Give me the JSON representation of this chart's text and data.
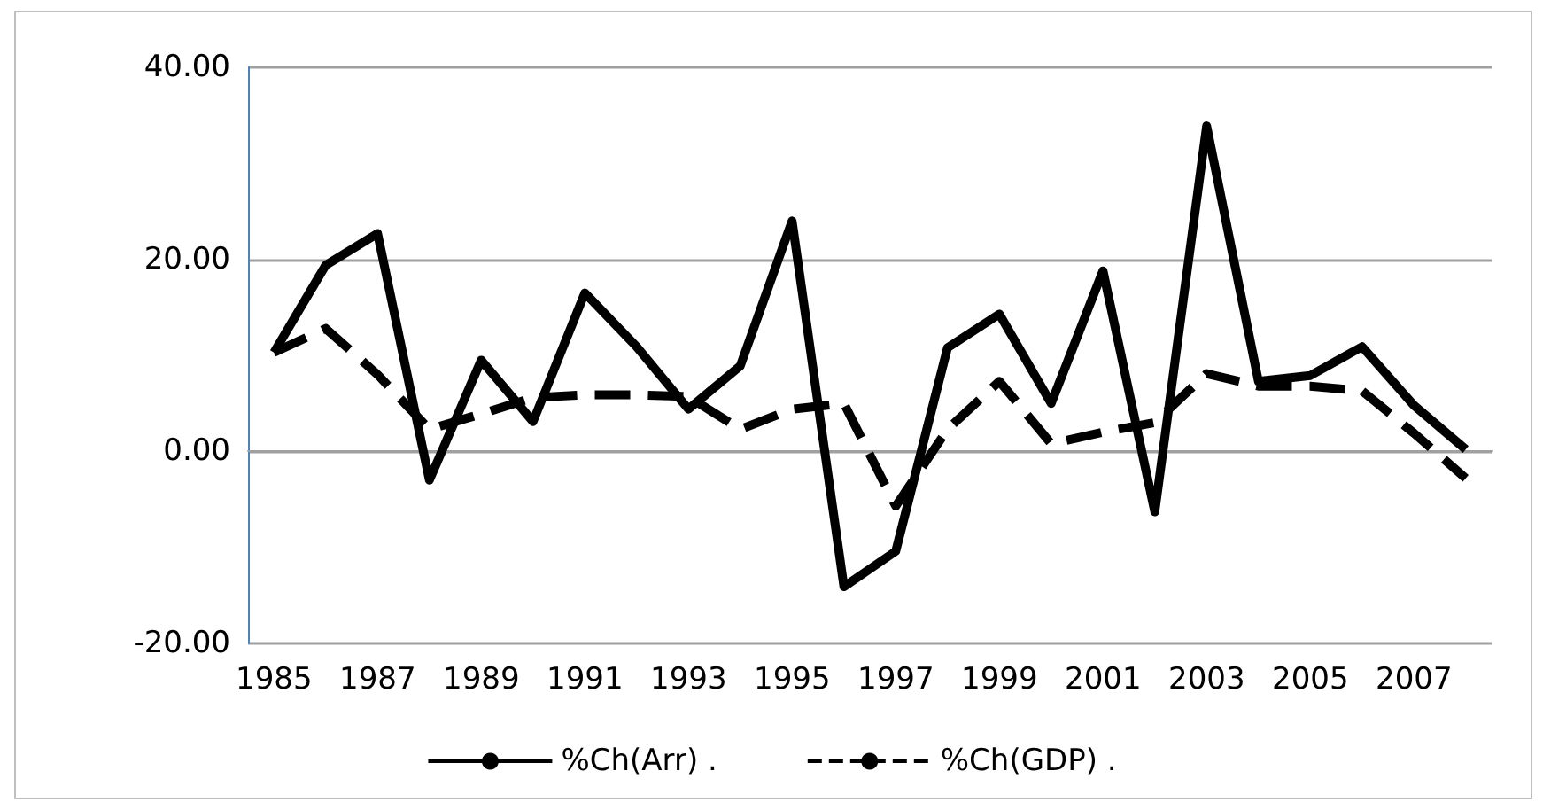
{
  "chart_data": {
    "type": "line",
    "categories": [
      "1985",
      null,
      "1987",
      null,
      "1989",
      null,
      "1991",
      null,
      "1993",
      null,
      "1995",
      null,
      "1997",
      null,
      "1999",
      null,
      "2001",
      null,
      "2003",
      null,
      "2005",
      null,
      "2007",
      null
    ],
    "series": [
      {
        "name": "%Ch(Arr) .",
        "color": "#000000",
        "line_style": "solid",
        "values": [
          10.3,
          19.4,
          22.7,
          -3.0,
          9.5,
          3.1,
          16.5,
          10.9,
          4.4,
          8.9,
          24.0,
          -14.1,
          -10.4,
          10.8,
          14.3,
          5.0,
          18.8,
          -6.3,
          33.9,
          7.3,
          7.9,
          10.9,
          4.8,
          0.2
        ]
      },
      {
        "name": "%Ch(GDP) .",
        "color": "#000000",
        "line_style": "dashed",
        "values": [
          10.3,
          12.8,
          8.0,
          2.3,
          3.9,
          5.6,
          5.9,
          5.9,
          5.7,
          2.3,
          4.4,
          5.0,
          -5.7,
          2.3,
          7.3,
          0.8,
          2.0,
          3.0,
          8.1,
          6.8,
          6.8,
          6.3,
          1.9,
          -2.8
        ]
      }
    ],
    "ylim": [
      -20,
      40
    ],
    "yticks": [
      {
        "value": -20,
        "label": "-20.00"
      },
      {
        "value": 0,
        "label": "0.00"
      },
      {
        "value": 20,
        "label": "20.00"
      },
      {
        "value": 40,
        "label": "40.00"
      }
    ],
    "grid": "y",
    "legend": "bottom",
    "marker": "none"
  }
}
